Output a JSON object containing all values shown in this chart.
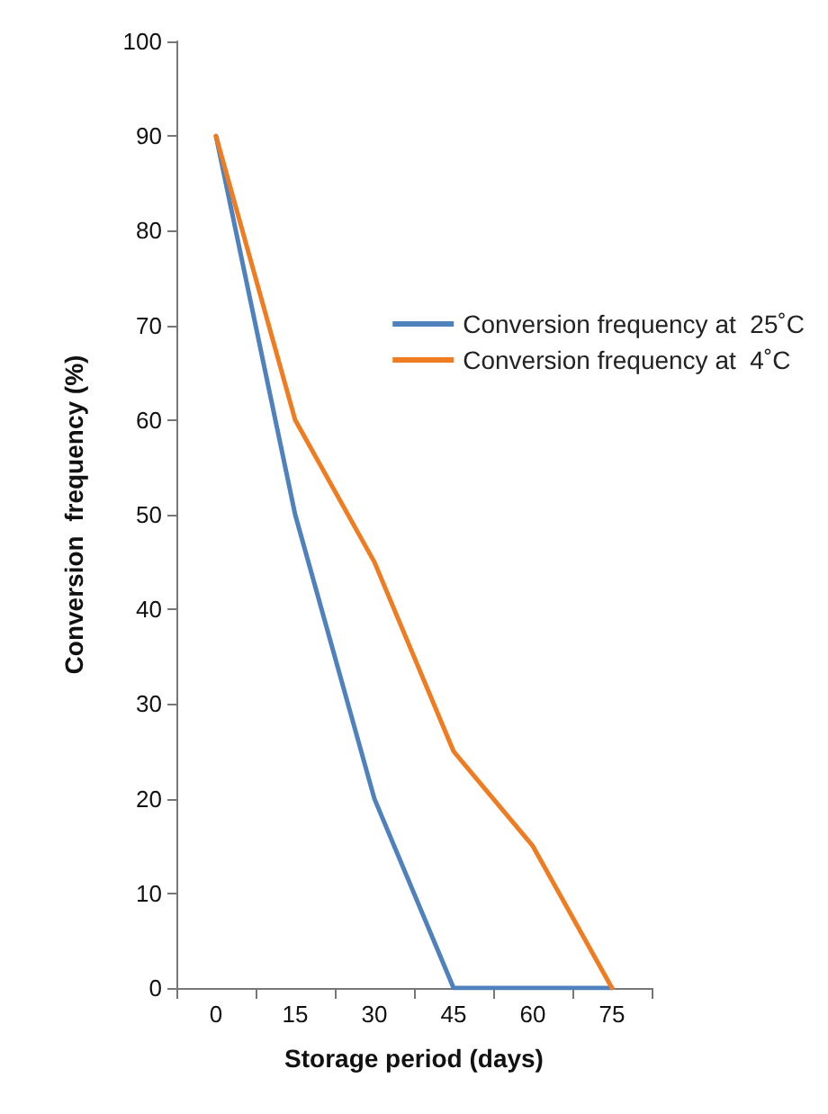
{
  "chart_data": {
    "type": "line",
    "xlabel": "Storage period (days)",
    "ylabel": "Conversion  frequency (%)",
    "categories": [
      "0",
      "15",
      "30",
      "45",
      "60",
      "75"
    ],
    "series": [
      {
        "name": "Conversion frequency at  25˚C",
        "color": "#4f81bd",
        "values": [
          90,
          50,
          20,
          0,
          0,
          0
        ]
      },
      {
        "name": "Conversion frequency at  4˚C",
        "color": "#f07c22",
        "values": [
          90,
          60,
          45,
          25,
          15,
          0
        ]
      }
    ],
    "ylim": [
      0,
      100
    ],
    "yticks": [
      0,
      10,
      20,
      30,
      40,
      50,
      60,
      70,
      80,
      90,
      100
    ],
    "grid": false,
    "legend": "right",
    "marker": "none",
    "line_style": "solid"
  }
}
